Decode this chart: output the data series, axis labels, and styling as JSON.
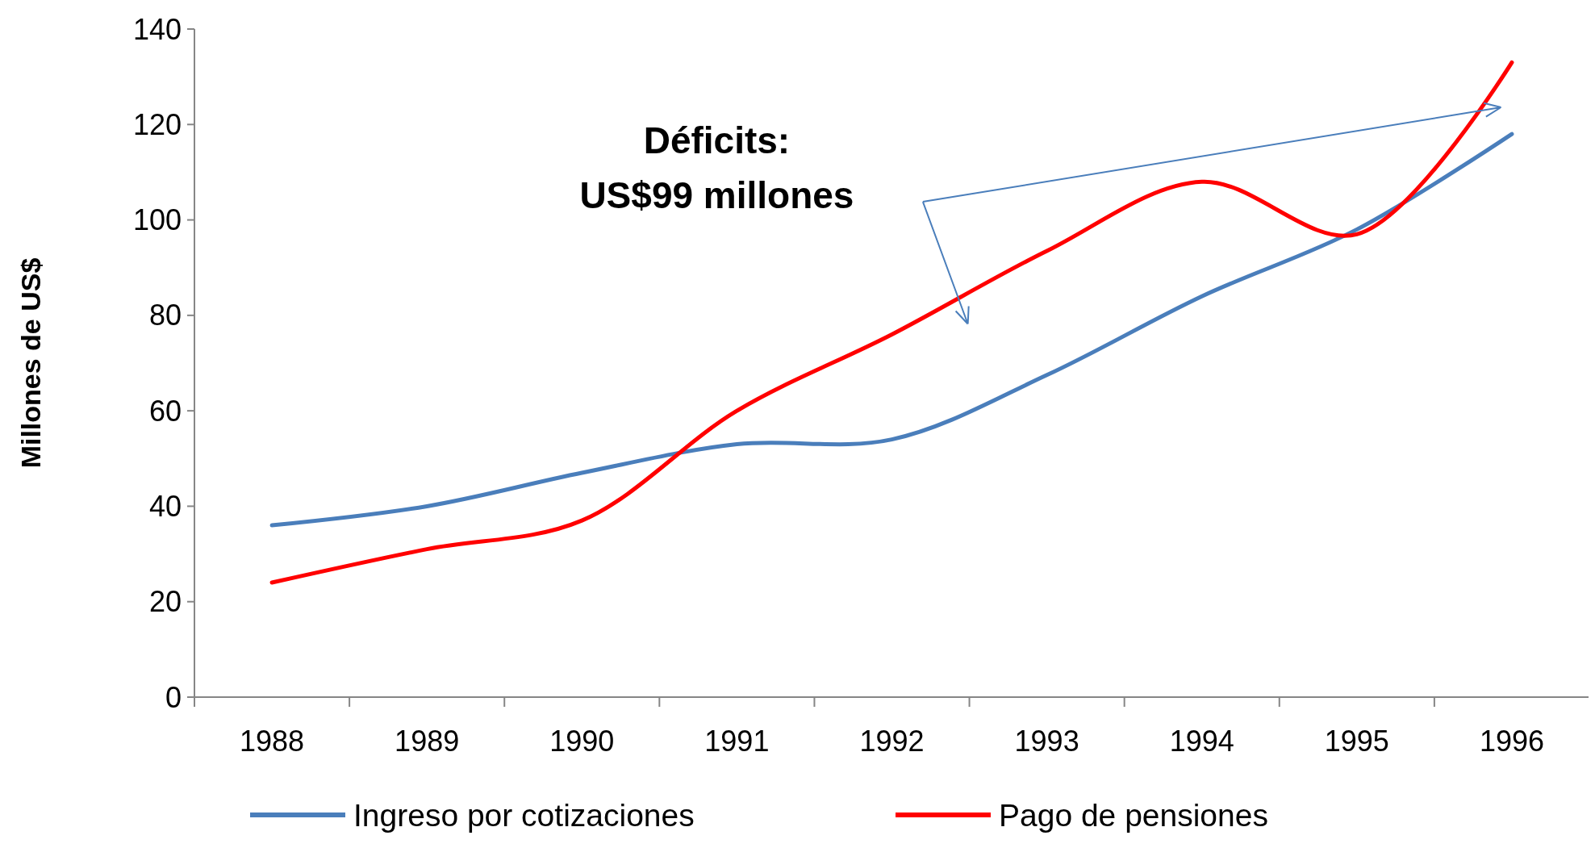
{
  "chart_data": {
    "type": "line",
    "ylabel": "Millones de US$",
    "categories": [
      "1988",
      "1989",
      "1990",
      "1991",
      "1992",
      "1993",
      "1994",
      "1995",
      "1996"
    ],
    "series": [
      {
        "name": "Ingreso por cotizaciones",
        "color": "#4a7ebb",
        "values": [
          36,
          40,
          47,
          53,
          54,
          67.5,
          84,
          98,
          118
        ]
      },
      {
        "name": "Pago de pensiones",
        "color": "#ff0000",
        "values": [
          24,
          31,
          37,
          60,
          76,
          93.5,
          108,
          97,
          133
        ]
      }
    ],
    "ylim": [
      0,
      140
    ],
    "yticks": [
      0,
      20,
      40,
      60,
      80,
      100,
      120,
      140
    ],
    "grid": false,
    "legend": "bottom",
    "marker": "none",
    "line_style": "solid",
    "annotations": [
      "Déficits:",
      "US$99 millones"
    ]
  }
}
